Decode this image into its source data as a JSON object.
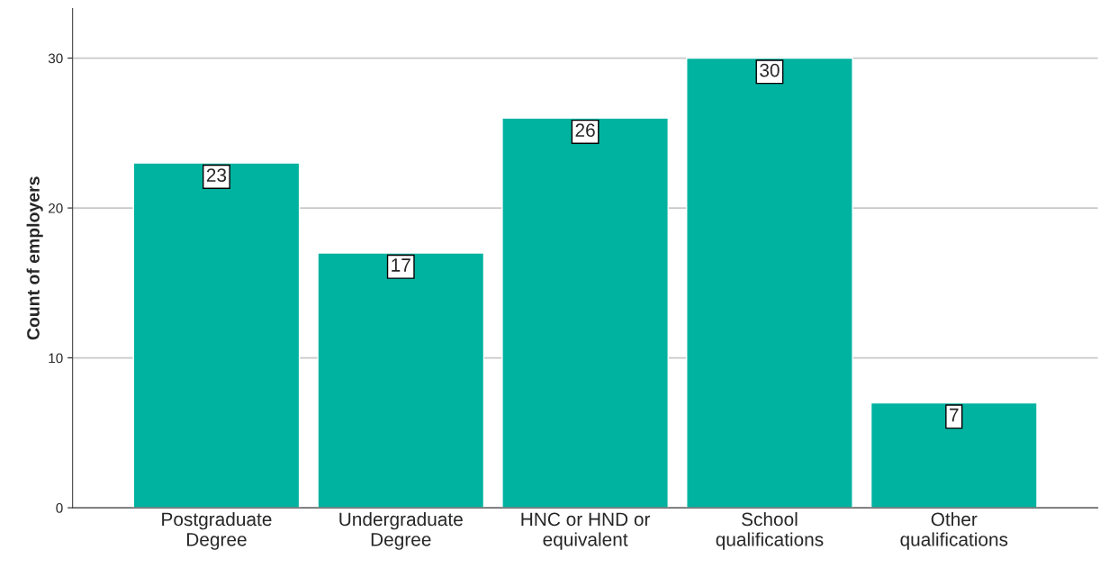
{
  "chart_data": {
    "type": "bar",
    "ylabel": "Count of employers",
    "categories": [
      "Postgraduate\nDegree",
      "Undergraduate\nDegree",
      "HNC or HND or\nequivalent",
      "School\nqualifications",
      "Other\nqualifications"
    ],
    "values": [
      23,
      17,
      26,
      30,
      7
    ],
    "color": "#00b2a0",
    "ylim": [
      0,
      33.3
    ],
    "yticks": [
      0,
      10,
      20,
      30
    ],
    "grid": "y",
    "data_labels": true
  }
}
